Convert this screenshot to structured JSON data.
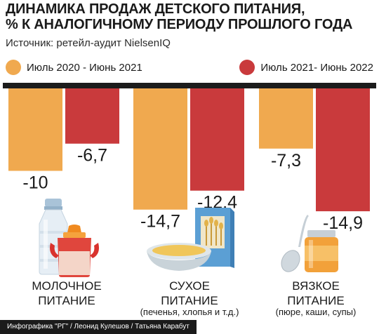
{
  "header": {
    "title_line1": "ДИНАМИКА ПРОДАЖ ДЕТСКОГО ПИТАНИЯ,",
    "title_line2": "% К АНАЛОГИЧНОМУ ПЕРИОДУ ПРОШЛОГО ГОДА",
    "source": "Источник: ретейл-аудит NielsenIQ"
  },
  "colors": {
    "period1": "#F0A94F",
    "period2": "#C93A3C"
  },
  "chart_data": {
    "type": "bar",
    "title": "ДИНАМИКА ПРОДАЖ ДЕТСКОГО ПИТАНИЯ, % К АНАЛОГИЧНОМУ ПЕРИОДУ ПРОШЛОГО ГОДА",
    "categories": [
      "МОЛОЧНОЕ ПИТАНИЕ",
      "СУХОЕ ПИТАНИЕ",
      "ВЯЗКОЕ ПИТАНИЕ"
    ],
    "series": [
      {
        "name": "Июль 2020 - Июнь 2021",
        "values": [
          -10,
          -14.7,
          -7.3
        ],
        "labels": [
          "-10",
          "-14,7",
          "-7,3"
        ]
      },
      {
        "name": "Июль 2021- Июнь 2022",
        "values": [
          -6.7,
          -12.4,
          -14.9
        ],
        "labels": [
          "-6,7",
          "-12,4",
          "-14,9"
        ]
      }
    ],
    "ylim": [
      -16,
      0
    ],
    "legend": "top",
    "grid": false
  },
  "categories": [
    {
      "line1": "МОЛОЧНОЕ",
      "line2": "ПИТАНИЕ",
      "sub": ""
    },
    {
      "line1": "СУХОЕ",
      "line2": "ПИТАНИЕ",
      "sub": "(печенья, хлопья и т.д.)"
    },
    {
      "line1": "ВЯЗКОЕ",
      "line2": "ПИТАНИЕ",
      "sub": "(пюре, каши, супы)"
    }
  ],
  "icons": [
    "milk-bottle-icon",
    "sippy-cup-icon",
    "cereal-box-icon",
    "porridge-bowl-icon",
    "baby-food-jar-icon",
    "spoon-icon"
  ],
  "footer": "Инфографика \"РГ\" / Леонид Кулешов / Татьяна Карабут"
}
